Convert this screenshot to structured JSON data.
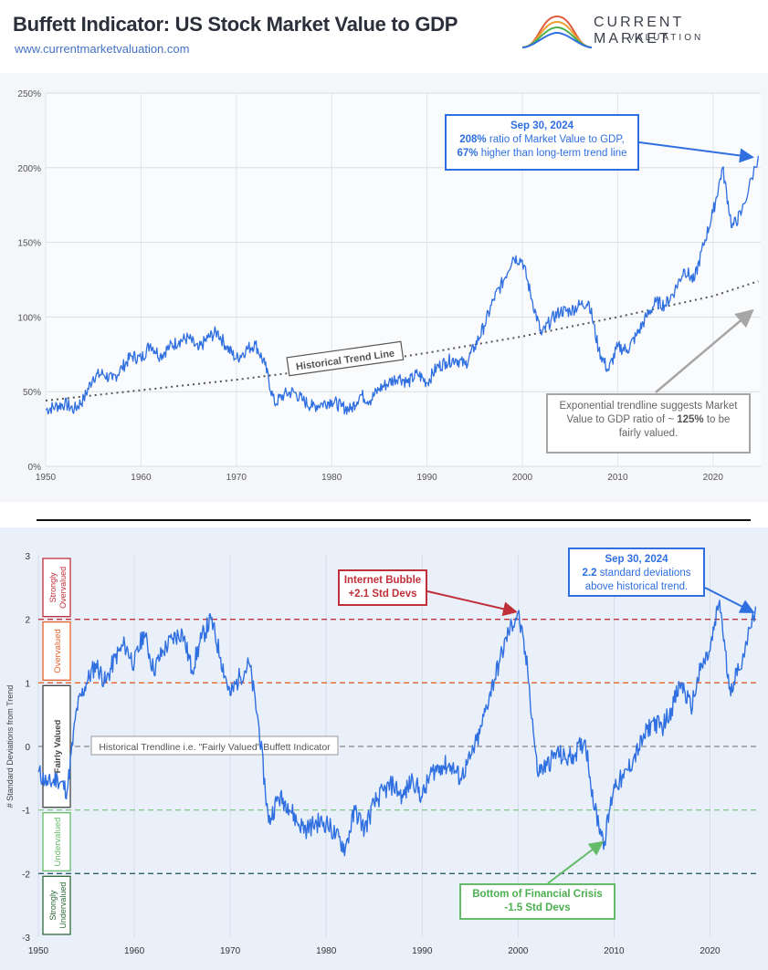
{
  "header": {
    "title": "Buffett Indicator: US Stock Market Value to GDP",
    "url": "www.currentmarketvaluation.com",
    "logo_name": "CURRENT MARKET",
    "logo_sub": "VALUATION"
  },
  "colors": {
    "line": "#2f6fe0",
    "trend": "#555555",
    "callout_blue": "#2f6fe0",
    "callout_red": "#c0303a",
    "callout_green": "#66bb6a",
    "callout_gray": "#999999"
  },
  "chart_data": [
    {
      "type": "line",
      "ylim": [
        0,
        250
      ],
      "xlim": [
        1950,
        2025
      ],
      "yticks": [
        "0%",
        "50%",
        "100%",
        "150%",
        "200%",
        "250%"
      ],
      "xticks": [
        "1950",
        "1960",
        "1970",
        "1980",
        "1990",
        "2000",
        "2010",
        "2020"
      ],
      "grid": true,
      "series": [
        {
          "x": [
            1950,
            1951,
            1952,
            1953,
            1954,
            1955,
            1956,
            1957,
            1958,
            1959,
            1960,
            1961,
            1962,
            1963,
            1964,
            1965,
            1966,
            1967,
            1968,
            1969,
            1970,
            1971,
            1972,
            1973,
            1974,
            1975,
            1976,
            1977,
            1978,
            1979,
            1980,
            1981,
            1982,
            1983,
            1984,
            1985,
            1986,
            1987,
            1988,
            1989,
            1990,
            1991,
            1992,
            1993,
            1994,
            1995,
            1996,
            1997,
            1998,
            1999,
            2000,
            2001,
            2002,
            2003,
            2004,
            2005,
            2006,
            2007,
            2008,
            2009,
            2010,
            2011,
            2012,
            2013,
            2014,
            2015,
            2016,
            2017,
            2018,
            2019,
            2020,
            2021,
            2022,
            2023,
            2024.75
          ],
          "values": [
            38,
            40,
            42,
            38,
            45,
            60,
            62,
            58,
            66,
            74,
            72,
            82,
            74,
            80,
            84,
            86,
            78,
            86,
            90,
            80,
            72,
            78,
            82,
            68,
            42,
            48,
            50,
            44,
            40,
            42,
            44,
            40,
            38,
            48,
            44,
            52,
            56,
            60,
            56,
            62,
            56,
            66,
            70,
            72,
            68,
            80,
            94,
            112,
            124,
            140,
            138,
            112,
            88,
            98,
            104,
            104,
            108,
            110,
            78,
            64,
            80,
            78,
            88,
            100,
            110,
            108,
            118,
            132,
            124,
            148,
            170,
            200,
            160,
            170,
            208
          ]
        },
        {
          "name": "Historical Trend Line",
          "x": [
            1950,
            1960,
            1970,
            1980,
            1990,
            2000,
            2010,
            2020,
            2024.75
          ],
          "values": [
            44,
            51,
            58,
            66,
            76,
            87,
            100,
            114,
            124
          ]
        }
      ],
      "annotations": [
        {
          "date": "Sep 30, 2024",
          "ratio": "208%",
          "line1": " ratio of Market Value to GDP,",
          "pct": "67%",
          "line2": " higher than long-term trend line"
        },
        {
          "text1": "Exponential trendline suggests Market",
          "text2": "Value to GDP ratio of ~ ",
          "value": "125%",
          "text3": " to be",
          "text4": "fairly valued."
        }
      ]
    },
    {
      "type": "line",
      "ylabel": "# Standard Deviations from Trend",
      "ylim": [
        -3,
        3
      ],
      "xlim": [
        1950,
        2025
      ],
      "yticks": [
        "-3",
        "-2",
        "-1",
        "0",
        "1",
        "2",
        "3"
      ],
      "xticks": [
        "1950",
        "1960",
        "1970",
        "1980",
        "1990",
        "2000",
        "2010",
        "2020"
      ],
      "bands": [
        "Strongly Overvalued",
        "Overvalued",
        "Fairly Valued",
        "Undervalued",
        "Strongly Undervalued"
      ],
      "series": [
        {
          "x": [
            1950,
            1951,
            1952,
            1953,
            1954,
            1955,
            1956,
            1957,
            1958,
            1959,
            1960,
            1961,
            1962,
            1963,
            1964,
            1965,
            1966,
            1967,
            1968,
            1969,
            1970,
            1971,
            1972,
            1973,
            1974,
            1975,
            1976,
            1977,
            1978,
            1979,
            1980,
            1981,
            1982,
            1983,
            1984,
            1985,
            1986,
            1987,
            1988,
            1989,
            1990,
            1991,
            1992,
            1993,
            1994,
            1995,
            1996,
            1997,
            1998,
            1999,
            2000,
            2001,
            2002,
            2003,
            2004,
            2005,
            2006,
            2007,
            2008,
            2009,
            2010,
            2011,
            2012,
            2013,
            2014,
            2015,
            2016,
            2017,
            2018,
            2019,
            2020,
            2021,
            2022,
            2023,
            2024.75
          ],
          "values": [
            -0.4,
            -0.6,
            -0.5,
            -0.7,
            0.6,
            1.0,
            1.3,
            1.0,
            1.4,
            1.6,
            1.3,
            1.8,
            1.2,
            1.5,
            1.7,
            1.8,
            1.2,
            1.7,
            2.0,
            1.4,
            0.8,
            1.1,
            1.3,
            0.3,
            -1.2,
            -0.8,
            -0.9,
            -1.2,
            -1.3,
            -1.2,
            -1.2,
            -1.4,
            -1.6,
            -1.0,
            -1.3,
            -0.9,
            -0.7,
            -0.6,
            -0.8,
            -0.5,
            -0.8,
            -0.4,
            -0.3,
            -0.3,
            -0.5,
            -0.2,
            0.2,
            0.8,
            1.3,
            1.8,
            2.1,
            1.2,
            -0.4,
            -0.3,
            -0.1,
            -0.2,
            -0.1,
            0.1,
            -1.0,
            -1.5,
            -0.6,
            -0.5,
            -0.2,
            0.1,
            0.4,
            0.3,
            0.6,
            1.0,
            0.6,
            1.2,
            1.5,
            2.3,
            0.9,
            1.2,
            2.2
          ]
        }
      ],
      "reference_line_label": "Historical Trendline i.e. \"Fairly Valued\" Buffett Indicator",
      "annotations": [
        {
          "date": "Sep 30, 2024",
          "value": "2.2",
          "line1": " standard deviations",
          "line2": "above historical trend."
        },
        {
          "title": "Internet Bubble",
          "value": "+2.1 Std Devs"
        },
        {
          "title": "Bottom of Financial Crisis",
          "value": "-1.5 Std Devs"
        }
      ]
    }
  ]
}
